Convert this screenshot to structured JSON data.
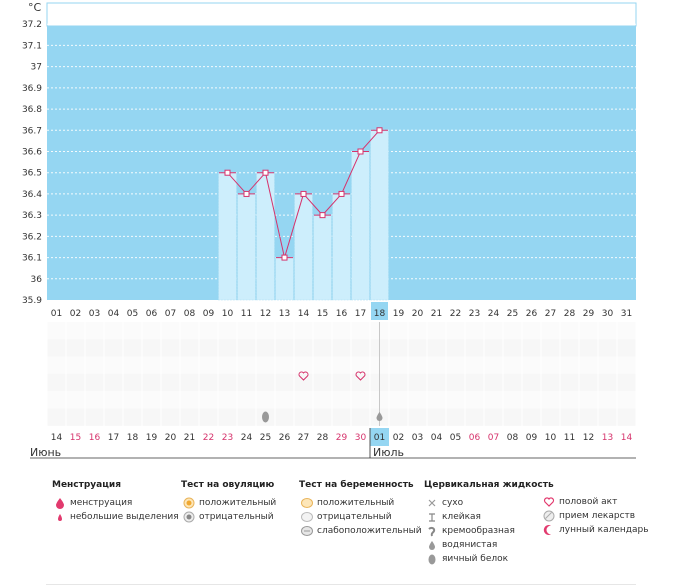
{
  "unit": "°C",
  "chart_data": {
    "type": "line",
    "ylim": [
      35.9,
      37.3
    ],
    "y_ticks": [
      "37.2",
      "37.1",
      "37",
      "36.9",
      "36.8",
      "36.7",
      "36.6",
      "36.5",
      "36.4",
      "36.3",
      "36.2",
      "36.1",
      "36",
      "35.9"
    ],
    "cycle_days": [
      "01",
      "02",
      "03",
      "04",
      "05",
      "06",
      "07",
      "08",
      "09",
      "10",
      "11",
      "12",
      "13",
      "14",
      "15",
      "16",
      "17",
      "18",
      "19",
      "20",
      "21",
      "22",
      "23",
      "24",
      "25",
      "26",
      "27",
      "28",
      "29",
      "30",
      "31"
    ],
    "current_day": 18,
    "series": [
      {
        "values": [
          null,
          null,
          null,
          null,
          null,
          null,
          null,
          null,
          null,
          36.5,
          36.4,
          36.5,
          36.1,
          36.4,
          36.3,
          36.4,
          36.6,
          36.7,
          null,
          null,
          null,
          null,
          null,
          null,
          null,
          null,
          null,
          null,
          null,
          null,
          null
        ]
      }
    ],
    "calendar_dates": [
      "14",
      "15",
      "16",
      "17",
      "18",
      "19",
      "20",
      "21",
      "22",
      "23",
      "24",
      "25",
      "26",
      "27",
      "28",
      "29",
      "30",
      "01",
      "02",
      "03",
      "04",
      "05",
      "06",
      "07",
      "08",
      "09",
      "10",
      "11",
      "12",
      "13",
      "14"
    ],
    "weekend_flags": [
      false,
      true,
      true,
      false,
      false,
      false,
      false,
      false,
      true,
      true,
      false,
      false,
      false,
      false,
      false,
      true,
      true,
      false,
      false,
      false,
      false,
      false,
      true,
      true,
      false,
      false,
      false,
      false,
      false,
      true,
      true
    ],
    "months": [
      "Июнь",
      "Июль"
    ],
    "month_start_index": 17,
    "intercourse_days": [
      14,
      17
    ],
    "cervical_days": [
      {
        "day": 12,
        "type": "egg-white"
      },
      {
        "day": 18,
        "type": "watery"
      }
    ],
    "colors": {
      "background": "#95d6f2",
      "bar": "#cdeefc",
      "bar_stroke": "#a8dcf2",
      "line": "#d6336c",
      "weekend": "#d6336c",
      "current_day": "#95d6f2"
    }
  },
  "legend": {
    "menstruation": {
      "title": "Менструация",
      "items": [
        "менструация",
        "небольшие выделения"
      ]
    },
    "ovulation": {
      "title": "Тест на овуляцию",
      "items": [
        "положительный",
        "отрицательный"
      ]
    },
    "pregnancy": {
      "title": "Тест на беременность",
      "items": [
        "положительный",
        "отрицательный",
        "слабоположительный"
      ]
    },
    "cervical": {
      "title": "Цервикальная жидкость",
      "items": [
        "сухо",
        "клейкая",
        "кремообразная",
        "водянистая",
        "яичный белок"
      ]
    },
    "other": {
      "items": [
        "половой акт",
        "прием лекарств",
        "лунный календарь"
      ]
    }
  }
}
